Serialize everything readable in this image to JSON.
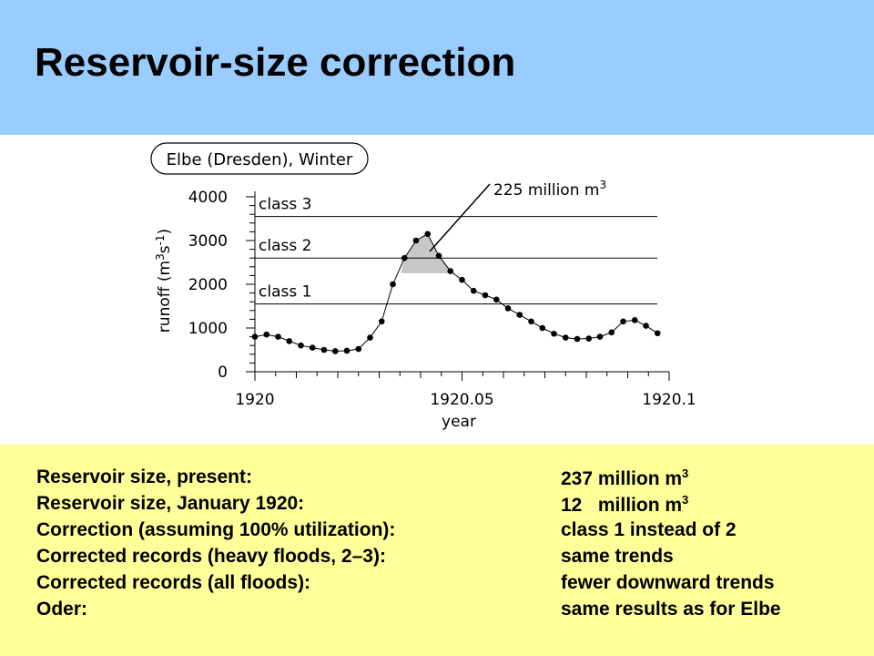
{
  "title": "Reservoir-size correction",
  "chart_data": {
    "type": "line",
    "title": "Elbe (Dresden), Winter",
    "xlabel": "year",
    "ylabel_main": "runoff",
    "ylabel_unit": "(m",
    "ylabel_sup1": "3",
    "ylabel_mid": "s",
    "ylabel_sup2": "-1",
    "ylabel_close": ")",
    "xlim": [
      1920,
      1920.1
    ],
    "ylim": [
      0,
      4000
    ],
    "x_ticks": [
      "1920",
      "1920.05",
      "1920.1"
    ],
    "y_ticks": [
      "0",
      "1000",
      "2000",
      "3000",
      "4000"
    ],
    "grid": false,
    "x": [
      1920.0,
      1920.0028,
      1920.0056,
      1920.0083,
      1920.0111,
      1920.0139,
      1920.0167,
      1920.0194,
      1920.0222,
      1920.025,
      1920.0278,
      1920.0306,
      1920.0333,
      1920.0361,
      1920.0389,
      1920.0417,
      1920.0444,
      1920.0472,
      1920.05,
      1920.0528,
      1920.0556,
      1920.0583,
      1920.0611,
      1920.0639,
      1920.0667,
      1920.0694,
      1920.0722,
      1920.075,
      1920.0778,
      1920.0806,
      1920.0833,
      1920.0861,
      1920.0889,
      1920.0917,
      1920.0944,
      1920.0972
    ],
    "values": [
      800,
      850,
      800,
      700,
      600,
      550,
      500,
      470,
      480,
      520,
      780,
      1150,
      2000,
      2600,
      3000,
      3150,
      2650,
      2300,
      2100,
      1850,
      1750,
      1650,
      1450,
      1300,
      1150,
      1000,
      870,
      780,
      750,
      760,
      800,
      900,
      1150,
      1180,
      1050,
      880
    ],
    "thresholds": [
      {
        "label": "class 1",
        "value": 1550
      },
      {
        "label": "class 2",
        "value": 2600
      },
      {
        "label": "class 3",
        "value": 3550
      }
    ],
    "shaded_region": {
      "from": 1920.0361,
      "to": 1920.0472,
      "lower": 2250
    },
    "annotation": {
      "text": "225 million m",
      "sup": "3"
    }
  },
  "info": [
    {
      "label": "Reservoir size, present:",
      "value": "237 million m",
      "sup": "3"
    },
    {
      "label": "Reservoir size, January 1920:",
      "value": "12   million m",
      "sup": "3"
    },
    {
      "label": "Correction (assuming 100% utilization):",
      "value": "class 1 instead of 2"
    },
    {
      "label": "Corrected records (heavy floods, 2–3):",
      "value": "same trends"
    },
    {
      "label": "Corrected records (all floods):",
      "value": "fewer downward trends"
    },
    {
      "label": "Oder:",
      "value": "same results as for Elbe"
    }
  ],
  "colors": {
    "header_bg": "#99ccff",
    "footer_bg": "#ffff99",
    "shade": "#c8c8c8"
  }
}
